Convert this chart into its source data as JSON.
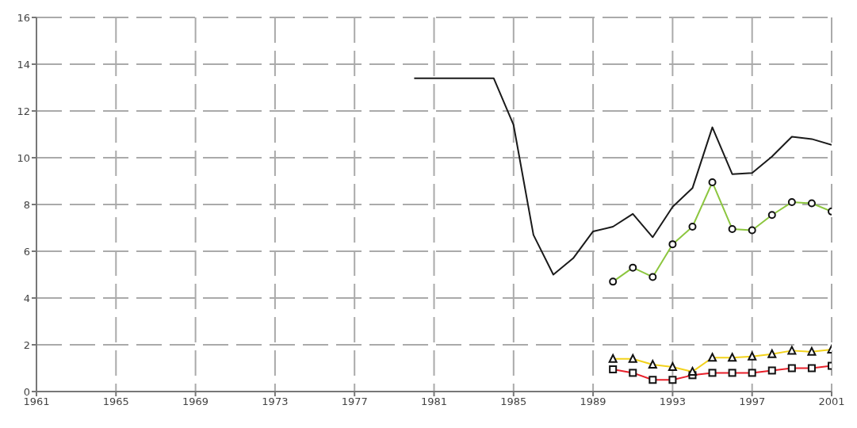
{
  "chart_data": {
    "type": "line",
    "xlim": [
      1961,
      2001
    ],
    "xticks": [
      1961,
      1965,
      1969,
      1973,
      1977,
      1981,
      1985,
      1989,
      1993,
      1997,
      2001
    ],
    "ylim": [
      0,
      16
    ],
    "yticks": [
      0,
      2,
      4,
      6,
      8,
      10,
      12,
      14,
      16
    ],
    "grid": true,
    "legend": false,
    "line_style": "solid",
    "series": [
      {
        "color": "#1a1a1a",
        "marker": "none",
        "x": [
          1980,
          1981,
          1982,
          1983,
          1984,
          1985,
          1986,
          1987,
          1988,
          1989,
          1990,
          1991,
          1992,
          1993,
          1994,
          1995,
          1996,
          1997,
          1998,
          1999,
          2000,
          2001
        ],
        "values": [
          13.4,
          13.4,
          13.4,
          13.4,
          13.4,
          11.4,
          6.7,
          5.0,
          5.7,
          6.85,
          7.05,
          7.6,
          6.6,
          7.9,
          8.7,
          11.3,
          9.3,
          9.35,
          10.05,
          10.9,
          10.8,
          10.55
        ]
      },
      {
        "color": "#8cc63f",
        "marker": "circle",
        "x": [
          1990,
          1991,
          1992,
          1993,
          1994,
          1995,
          1996,
          1997,
          1998,
          1999,
          2000,
          2001
        ],
        "values": [
          4.7,
          5.3,
          4.9,
          6.3,
          7.05,
          8.95,
          6.95,
          6.9,
          7.55,
          8.1,
          8.05,
          7.7
        ]
      },
      {
        "color": "#e8202a",
        "marker": "square",
        "x": [
          1990,
          1991,
          1992,
          1993,
          1994,
          1995,
          1996,
          1997,
          1998,
          1999,
          2000,
          2001
        ],
        "values": [
          0.95,
          0.8,
          0.5,
          0.5,
          0.7,
          0.8,
          0.8,
          0.8,
          0.9,
          1.0,
          1.0,
          1.1
        ]
      },
      {
        "color": "#f2d21b",
        "marker": "triangle",
        "x": [
          1990,
          1991,
          1992,
          1993,
          1994,
          1995,
          1996,
          1997,
          1998,
          1999,
          2000,
          2001
        ],
        "values": [
          1.4,
          1.4,
          1.15,
          1.05,
          0.85,
          1.45,
          1.45,
          1.5,
          1.6,
          1.75,
          1.7,
          1.8
        ]
      }
    ]
  }
}
